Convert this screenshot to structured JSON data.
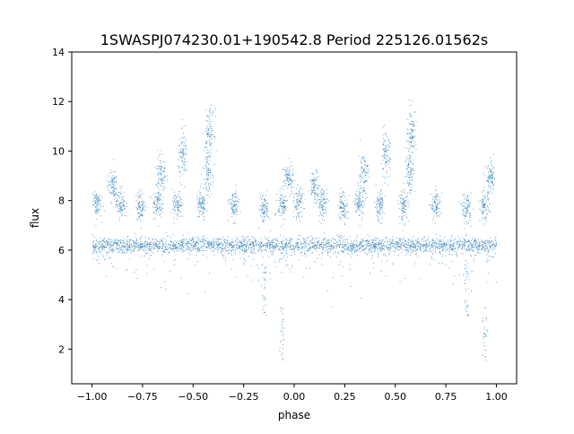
{
  "chart_data": {
    "type": "scatter",
    "title": "1SWASPJ074230.01+190542.8 Period 225126.01562s",
    "xlabel": "phase",
    "ylabel": "flux",
    "xlim": [
      -1.1,
      1.1
    ],
    "ylim": [
      0.6,
      14
    ],
    "xticks": [
      {
        "value": -1.0,
        "label": "−1.00"
      },
      {
        "value": -0.75,
        "label": "−0.75"
      },
      {
        "value": -0.5,
        "label": "−0.50"
      },
      {
        "value": -0.25,
        "label": "−0.25"
      },
      {
        "value": 0.0,
        "label": "0.00"
      },
      {
        "value": 0.25,
        "label": "0.25"
      },
      {
        "value": 0.5,
        "label": "0.50"
      },
      {
        "value": 0.75,
        "label": "0.75"
      },
      {
        "value": 1.0,
        "label": "1.00"
      }
    ],
    "yticks": [
      {
        "value": 2,
        "label": "2"
      },
      {
        "value": 4,
        "label": "4"
      },
      {
        "value": 6,
        "label": "6"
      },
      {
        "value": 8,
        "label": "8"
      },
      {
        "value": 10,
        "label": "10"
      },
      {
        "value": 12,
        "label": "12"
      },
      {
        "value": 14,
        "label": "14"
      }
    ],
    "grid": false,
    "marker_color": "#1f77b4",
    "series": [
      {
        "phase_range": [
          -1.0,
          1.0
        ],
        "baseline_flux": 6.2,
        "clusters": [
          {
            "phase": -0.98,
            "flux": 7.9
          },
          {
            "phase": -0.9,
            "flux": 8.6
          },
          {
            "phase": -0.86,
            "flux": 7.9
          },
          {
            "phase": -0.76,
            "flux": 7.8
          },
          {
            "phase": -0.68,
            "flux": 7.9
          },
          {
            "phase": -0.66,
            "flux": 9.1
          },
          {
            "phase": -0.58,
            "flux": 7.8
          },
          {
            "phase": -0.55,
            "flux": 9.8
          },
          {
            "phase": -0.46,
            "flux": 7.8
          },
          {
            "phase": -0.43,
            "flux": 9.2
          },
          {
            "phase": -0.42,
            "flux": 10.8
          },
          {
            "phase": -0.3,
            "flux": 7.8
          },
          {
            "phase": -0.15,
            "flux": 7.7
          },
          {
            "phase": -0.06,
            "flux": 7.8
          },
          {
            "phase": -0.03,
            "flux": 8.9
          },
          {
            "phase": 0.02,
            "flux": 7.9
          },
          {
            "phase": 0.1,
            "flux": 8.6
          },
          {
            "phase": 0.14,
            "flux": 7.9
          },
          {
            "phase": 0.24,
            "flux": 7.8
          },
          {
            "phase": 0.32,
            "flux": 7.9
          },
          {
            "phase": 0.34,
            "flux": 9.1
          },
          {
            "phase": 0.42,
            "flux": 7.8
          },
          {
            "phase": 0.45,
            "flux": 9.8
          },
          {
            "phase": 0.54,
            "flux": 7.8
          },
          {
            "phase": 0.57,
            "flux": 9.2
          },
          {
            "phase": 0.58,
            "flux": 10.8
          },
          {
            "phase": 0.7,
            "flux": 7.8
          },
          {
            "phase": 0.85,
            "flux": 7.7
          },
          {
            "phase": 0.94,
            "flux": 7.8
          },
          {
            "phase": 0.97,
            "flux": 8.9
          }
        ],
        "dips": [
          {
            "phase": -0.15,
            "flux": 4.0
          },
          {
            "phase": -0.06,
            "flux": 2.2
          },
          {
            "phase": 0.85,
            "flux": 4.0
          },
          {
            "phase": 0.94,
            "flux": 2.2
          }
        ]
      }
    ]
  }
}
